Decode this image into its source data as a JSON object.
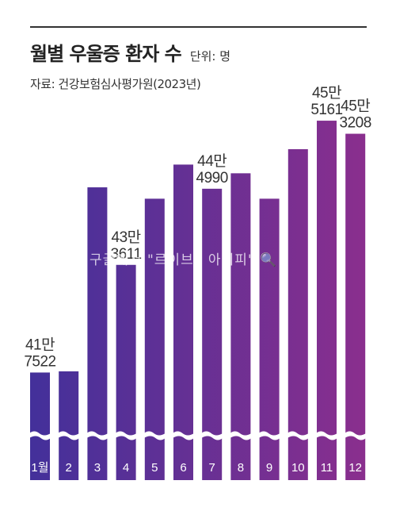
{
  "header": {
    "title": "월별 우울증 환자 수",
    "unit": "단위: 명",
    "source": "자료: 건강보험심사평가원(2023년)"
  },
  "watermark": "구글에서 \"르이브0 아이피\" 🔍",
  "colors": {
    "bar_start": "#43309a",
    "bar_end": "#8a2f8e",
    "label_text": "#333333"
  },
  "chart_data": {
    "type": "bar",
    "categories": [
      "1월",
      "2",
      "3",
      "4",
      "5",
      "6",
      "7",
      "8",
      "9",
      "10",
      "11",
      "12"
    ],
    "values": [
      417522,
      417700,
      445200,
      433611,
      443500,
      448600,
      444990,
      447300,
      443500,
      450900,
      455161,
      453208
    ],
    "ylim": [
      405000,
      456000
    ],
    "axis_break": true,
    "data_labels": [
      {
        "index": 0,
        "line1": "41만",
        "line2": "7522"
      },
      {
        "index": 3,
        "line1": "43만",
        "line2": "3611"
      },
      {
        "index": 6,
        "line1": "44만",
        "line2": "4990"
      },
      {
        "index": 10,
        "line1": "45만",
        "line2": "5161"
      },
      {
        "index": 11,
        "line1": "45만",
        "line2": "3208"
      }
    ]
  }
}
